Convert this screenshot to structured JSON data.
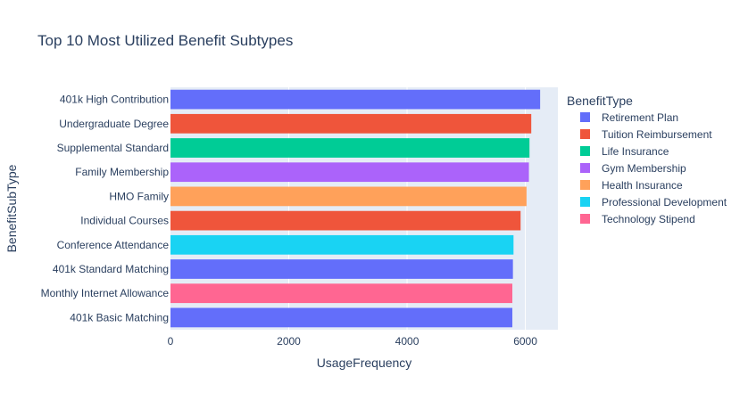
{
  "chart_data": {
    "type": "bar",
    "orientation": "horizontal",
    "title": "Top 10 Most Utilized Benefit Subtypes",
    "xlabel": "UsageFrequency",
    "ylabel": "BenefitSubType",
    "xlim": [
      0,
      6550
    ],
    "xticks": [
      0,
      2000,
      4000,
      6000
    ],
    "xtick_labels": [
      "0",
      "2000",
      "4000",
      "6000"
    ],
    "grid": true,
    "legend_title": "BenefitType",
    "legend_position": "right",
    "categories": [
      "401k High Contribution",
      "Undergraduate Degree",
      "Supplemental Standard",
      "Family Membership",
      "HMO Family",
      "Individual Courses",
      "Conference Attendance",
      "401k Standard Matching",
      "Monthly Internet Allowance",
      "401k Basic Matching"
    ],
    "values": [
      6250,
      6100,
      6070,
      6060,
      6020,
      5920,
      5800,
      5790,
      5780,
      5780
    ],
    "bar_types": [
      "Retirement Plan",
      "Tuition Reimbursement",
      "Life Insurance",
      "Gym Membership",
      "Health Insurance",
      "Tuition Reimbursement",
      "Professional Development",
      "Retirement Plan",
      "Technology Stipend",
      "Retirement Plan"
    ],
    "series": [
      {
        "name": "Retirement Plan",
        "color": "#636efa"
      },
      {
        "name": "Tuition Reimbursement",
        "color": "#ef553b"
      },
      {
        "name": "Life Insurance",
        "color": "#00cc96"
      },
      {
        "name": "Gym Membership",
        "color": "#ab63fa"
      },
      {
        "name": "Health Insurance",
        "color": "#ffa15a"
      },
      {
        "name": "Professional Development",
        "color": "#19d3f3"
      },
      {
        "name": "Technology Stipend",
        "color": "#ff6692"
      }
    ]
  }
}
